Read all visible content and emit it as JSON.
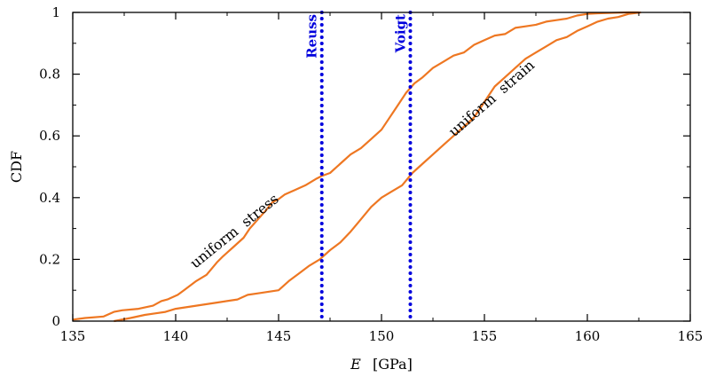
{
  "chart_data": {
    "type": "line",
    "xlabel_var": "E",
    "xlabel_unit": "[GPa]",
    "ylabel": "CDF",
    "xlim": [
      135,
      165
    ],
    "ylim": [
      0,
      1
    ],
    "x_ticks": [
      "135",
      "140",
      "145",
      "150",
      "155",
      "160",
      "165"
    ],
    "y_ticks": [
      "0",
      "0.2",
      "0.4",
      "0.6",
      "0.8",
      "1"
    ],
    "series_color": "#ee7722",
    "series": [
      {
        "x": [
          135.0,
          135.6,
          136.5,
          137.0,
          137.4,
          138.2,
          138.9,
          139.3,
          139.6,
          140.1,
          140.4,
          141.0,
          141.5,
          142.0,
          142.3,
          142.8,
          143.3,
          143.6,
          144.0,
          144.4,
          144.7,
          145.0,
          145.3,
          145.8,
          146.3,
          146.8,
          147.1,
          147.5,
          148.0,
          148.5,
          149.0,
          149.5,
          150.0,
          150.4,
          150.8,
          151.2,
          151.6,
          152.0,
          152.5,
          153.0,
          153.5,
          154.0,
          154.5,
          155.0,
          155.5,
          156.0,
          156.5,
          157.0,
          157.5,
          158.0,
          158.5,
          159.0,
          159.5,
          160.0,
          160.5,
          161.0,
          161.5,
          162.0,
          162.5
        ],
        "y": [
          0.005,
          0.01,
          0.015,
          0.03,
          0.035,
          0.04,
          0.05,
          0.065,
          0.07,
          0.085,
          0.1,
          0.13,
          0.15,
          0.19,
          0.21,
          0.24,
          0.27,
          0.3,
          0.33,
          0.36,
          0.385,
          0.395,
          0.41,
          0.425,
          0.44,
          0.46,
          0.47,
          0.48,
          0.51,
          0.54,
          0.56,
          0.59,
          0.62,
          0.66,
          0.7,
          0.74,
          0.77,
          0.79,
          0.82,
          0.84,
          0.86,
          0.87,
          0.895,
          0.91,
          0.925,
          0.93,
          0.95,
          0.955,
          0.96,
          0.97,
          0.975,
          0.98,
          0.99,
          0.995,
          0.997,
          0.998,
          0.999,
          1.0,
          1.0
        ]
      },
      {
        "x": [
          137.0,
          137.8,
          138.5,
          139.0,
          139.5,
          140.0,
          141.0,
          142.0,
          143.0,
          143.5,
          144.0,
          144.5,
          145.0,
          145.5,
          146.0,
          146.5,
          147.0,
          147.5,
          148.0,
          148.5,
          149.0,
          149.5,
          150.0,
          150.5,
          151.0,
          151.5,
          152.0,
          152.5,
          153.0,
          153.5,
          154.0,
          154.5,
          155.0,
          155.5,
          156.0,
          156.5,
          157.0,
          157.5,
          158.0,
          158.5,
          159.0,
          159.5,
          160.0,
          160.5,
          161.0,
          161.5,
          162.0,
          162.6
        ],
        "y": [
          0.0,
          0.01,
          0.02,
          0.025,
          0.03,
          0.04,
          0.05,
          0.06,
          0.07,
          0.085,
          0.09,
          0.095,
          0.1,
          0.13,
          0.155,
          0.18,
          0.2,
          0.23,
          0.255,
          0.29,
          0.33,
          0.37,
          0.4,
          0.42,
          0.44,
          0.48,
          0.51,
          0.54,
          0.57,
          0.6,
          0.63,
          0.66,
          0.71,
          0.76,
          0.79,
          0.82,
          0.85,
          0.87,
          0.89,
          0.91,
          0.92,
          0.94,
          0.955,
          0.97,
          0.98,
          0.985,
          0.995,
          1.0
        ]
      }
    ],
    "vlines": [
      {
        "label": "Reuss",
        "x": 147.1
      },
      {
        "label": "Voigt",
        "x": 151.4
      }
    ],
    "vline_color": "#0000dd",
    "annotations": [
      {
        "text": "uniform  stress",
        "x": 143.0,
        "y": 0.28,
        "angle": -39
      },
      {
        "text": "uniform  strain",
        "x": 155.5,
        "y": 0.71,
        "angle": -41
      }
    ]
  }
}
